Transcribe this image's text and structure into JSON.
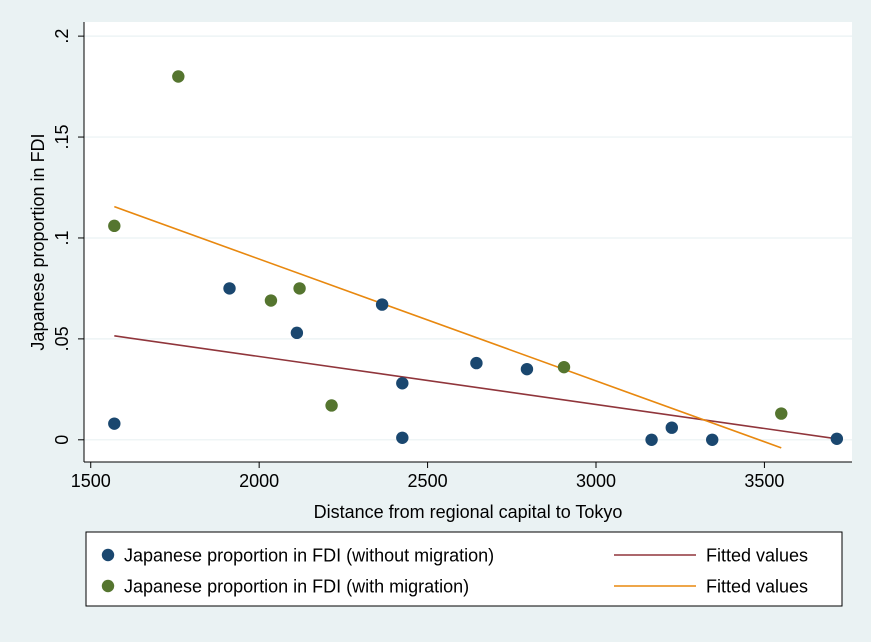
{
  "chart_data": {
    "type": "scatter",
    "title": "",
    "xlabel": "Distance from regional capital to Tokyo",
    "ylabel": "Japanese proportion in FDI",
    "xlim": [
      1500,
      3750
    ],
    "ylim": [
      0,
      0.2
    ],
    "x_ticks": [
      {
        "value": 1500,
        "label": "1500"
      },
      {
        "value": 2000,
        "label": "2000"
      },
      {
        "value": 2500,
        "label": "2500"
      },
      {
        "value": 3000,
        "label": "3000"
      },
      {
        "value": 3500,
        "label": "3500"
      }
    ],
    "y_ticks": [
      {
        "value": 0,
        "label": "0"
      },
      {
        "value": 0.05,
        "label": ".05"
      },
      {
        "value": 0.1,
        "label": ".1"
      },
      {
        "value": 0.15,
        "label": ".15"
      },
      {
        "value": 0.2,
        "label": ".2"
      }
    ],
    "grid": true,
    "legend_position": "bottom",
    "series": [
      {
        "name": "Japanese proportion in FDI (without migration)",
        "kind": "scatter",
        "color": "#1a476f",
        "points": [
          {
            "x": 1570,
            "y": 0.008
          },
          {
            "x": 1912,
            "y": 0.075
          },
          {
            "x": 2112,
            "y": 0.053
          },
          {
            "x": 2365,
            "y": 0.067
          },
          {
            "x": 2425,
            "y": 0.028
          },
          {
            "x": 2425,
            "y": 0.001
          },
          {
            "x": 2645,
            "y": 0.038
          },
          {
            "x": 2795,
            "y": 0.035
          },
          {
            "x": 3165,
            "y": 0.0
          },
          {
            "x": 3225,
            "y": 0.006
          },
          {
            "x": 3345,
            "y": 0.0
          },
          {
            "x": 3715,
            "y": 0.0005
          }
        ]
      },
      {
        "name": "Japanese proportion in FDI (with migration)",
        "kind": "scatter",
        "color": "#55752f",
        "points": [
          {
            "x": 1570,
            "y": 0.106
          },
          {
            "x": 1760,
            "y": 0.18
          },
          {
            "x": 2035,
            "y": 0.069
          },
          {
            "x": 2120,
            "y": 0.075
          },
          {
            "x": 2215,
            "y": 0.017
          },
          {
            "x": 2905,
            "y": 0.036
          },
          {
            "x": 3550,
            "y": 0.013
          }
        ]
      },
      {
        "name": "Fitted values",
        "kind": "line",
        "color": "#90353b",
        "points": [
          {
            "x": 1570,
            "y": 0.0515
          },
          {
            "x": 3715,
            "y": 0.0005
          }
        ]
      },
      {
        "name": "Fitted values",
        "kind": "line",
        "color": "#e8880f",
        "points": [
          {
            "x": 1570,
            "y": 0.1155
          },
          {
            "x": 3550,
            "y": -0.004
          }
        ]
      }
    ],
    "legend": [
      {
        "label": "Japanese proportion in FDI (without migration)",
        "marker": "dot",
        "color": "#1a476f"
      },
      {
        "label": "Fitted values",
        "marker": "line",
        "color": "#90353b"
      },
      {
        "label": "Japanese proportion in FDI (with migration)",
        "marker": "dot",
        "color": "#55752f"
      },
      {
        "label": "Fitted values",
        "marker": "line",
        "color": "#e8880f"
      }
    ]
  }
}
